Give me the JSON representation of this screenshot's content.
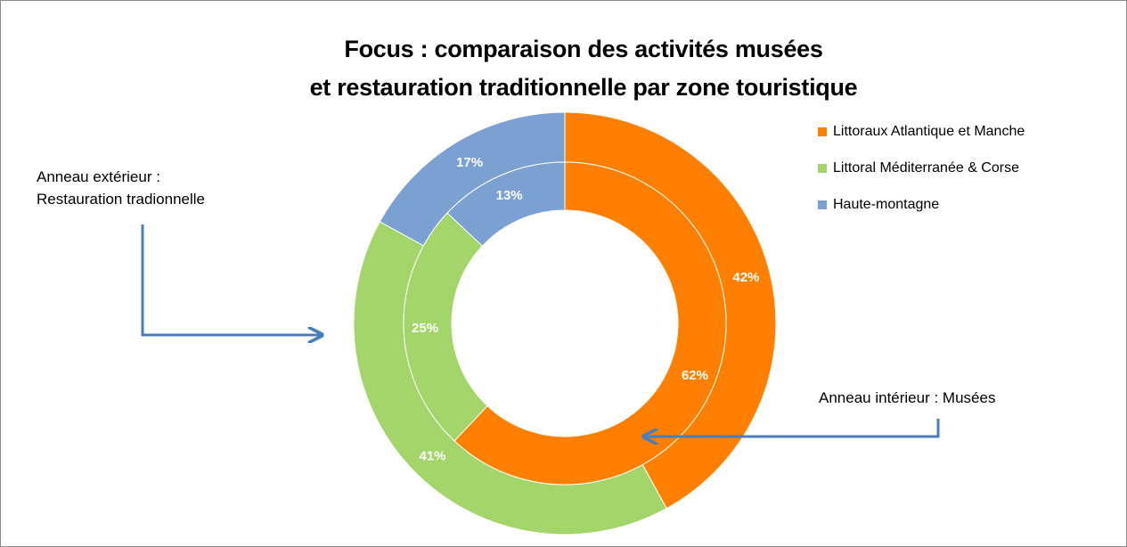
{
  "chart_data": {
    "type": "doughnut",
    "title_lines": [
      "Focus : comparaison des activités musées",
      "et restauration traditionnelle par zone touristique"
    ],
    "categories": [
      "Littoraux Atlantique et Manche",
      "Littoral Méditerranée & Corse",
      "Haute-montagne"
    ],
    "colors": [
      "#ff8000",
      "#a4d56a",
      "#7ba0d2"
    ],
    "series": [
      {
        "ring": "outer",
        "values": [
          42,
          41,
          17
        ],
        "labels": [
          "42%",
          "41%",
          "17%"
        ]
      },
      {
        "ring": "inner",
        "values": [
          62,
          25,
          13
        ],
        "labels": [
          "62%",
          "25%",
          "13%"
        ]
      }
    ],
    "legend_position": "top-right",
    "annotations": {
      "outer_ring": [
        "Anneau extérieur :",
        "Restauration tradionnelle"
      ],
      "inner_ring": "Anneau intérieur : Musées"
    },
    "arrow_color": "#4a7ebb"
  }
}
